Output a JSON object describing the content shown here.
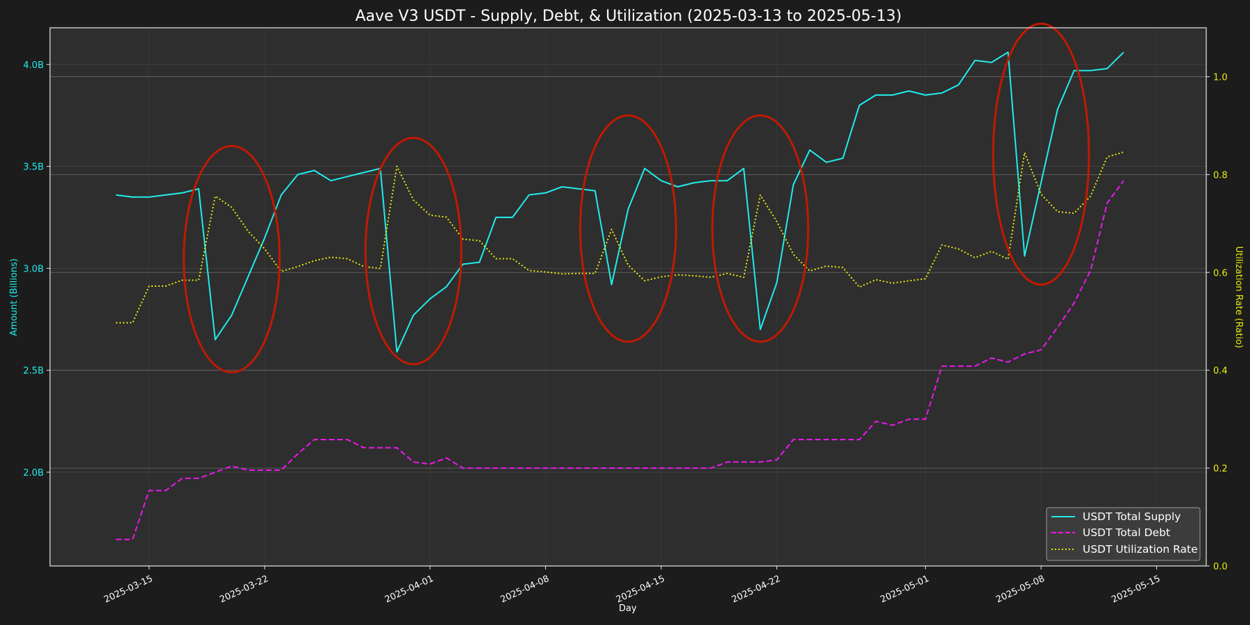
{
  "colors": {
    "figure_bg": "#1c1c1c",
    "axes_bg": "#2e2e2e",
    "supply": "#22ecec",
    "debt": "#ee18ee",
    "utilization": "#ecec10",
    "highlight_ellipse": "#c01a00",
    "grid": "#4a4a4a",
    "spine": "#e8e8e8",
    "text": "#ffffff"
  },
  "chart_data": {
    "type": "line",
    "title": "Aave V3 USDT - Supply, Debt, & Utilization (2025-03-13 to 2025-05-13)",
    "xlabel": "Day",
    "ylabel_left": "Amount (Billions)",
    "ylabel_right": "Utilization Rate (Ratio)",
    "x_ticks": [
      "2025-03-15",
      "2025-03-22",
      "2025-04-01",
      "2025-04-08",
      "2025-04-15",
      "2025-04-22",
      "2025-05-01",
      "2025-05-08",
      "2025-05-15"
    ],
    "y_left_ticks": [
      "2.0B",
      "2.5B",
      "3.0B",
      "3.5B",
      "4.0B"
    ],
    "y_right_ticks": [
      "0.0",
      "0.2",
      "0.4",
      "0.6",
      "0.8",
      "1.0"
    ],
    "x_range": [
      "2025-03-09",
      "2025-05-18"
    ],
    "y_left_range": [
      1.54,
      4.18
    ],
    "y_right_range": [
      0.0,
      1.1
    ],
    "grid": true,
    "legend_position": "bottom-right",
    "dates": [
      "2025-03-13",
      "2025-03-14",
      "2025-03-15",
      "2025-03-16",
      "2025-03-17",
      "2025-03-18",
      "2025-03-19",
      "2025-03-20",
      "2025-03-21",
      "2025-03-22",
      "2025-03-23",
      "2025-03-24",
      "2025-03-25",
      "2025-03-26",
      "2025-03-27",
      "2025-03-28",
      "2025-03-29",
      "2025-03-30",
      "2025-03-31",
      "2025-04-01",
      "2025-04-02",
      "2025-04-03",
      "2025-04-04",
      "2025-04-05",
      "2025-04-06",
      "2025-04-07",
      "2025-04-08",
      "2025-04-09",
      "2025-04-10",
      "2025-04-11",
      "2025-04-12",
      "2025-04-13",
      "2025-04-14",
      "2025-04-15",
      "2025-04-16",
      "2025-04-17",
      "2025-04-18",
      "2025-04-19",
      "2025-04-20",
      "2025-04-21",
      "2025-04-22",
      "2025-04-23",
      "2025-04-24",
      "2025-04-25",
      "2025-04-26",
      "2025-04-27",
      "2025-04-28",
      "2025-04-29",
      "2025-04-30",
      "2025-05-01",
      "2025-05-02",
      "2025-05-03",
      "2025-05-04",
      "2025-05-05",
      "2025-05-06",
      "2025-05-07",
      "2025-05-08",
      "2025-05-09",
      "2025-05-10",
      "2025-05-11",
      "2025-05-12",
      "2025-05-13"
    ],
    "series": [
      {
        "name": "USDT Total Supply",
        "axis": "left",
        "style": "solid",
        "values": [
          3.36,
          3.35,
          3.35,
          3.36,
          3.37,
          3.39,
          2.65,
          2.77,
          2.96,
          3.15,
          3.36,
          3.46,
          3.48,
          3.43,
          3.45,
          3.47,
          3.49,
          2.59,
          2.77,
          2.85,
          2.91,
          3.02,
          3.03,
          3.25,
          3.25,
          3.36,
          3.37,
          3.4,
          3.39,
          3.38,
          2.92,
          3.29,
          3.49,
          3.43,
          3.4,
          3.42,
          3.43,
          3.43,
          3.49,
          2.7,
          2.93,
          3.41,
          3.58,
          3.52,
          3.54,
          3.8,
          3.85,
          3.85,
          3.87,
          3.85,
          3.86,
          3.9,
          4.02,
          4.01,
          4.06,
          3.06,
          3.42,
          3.78,
          3.97,
          3.97,
          3.98,
          4.06
        ]
      },
      {
        "name": "USDT Total Debt",
        "axis": "left",
        "style": "dashed",
        "values": [
          1.67,
          1.67,
          1.91,
          1.91,
          1.97,
          1.97,
          2.0,
          2.03,
          2.01,
          2.01,
          2.01,
          2.09,
          2.16,
          2.16,
          2.16,
          2.12,
          2.12,
          2.12,
          2.05,
          2.04,
          2.07,
          2.02,
          2.02,
          2.02,
          2.02,
          2.02,
          2.02,
          2.02,
          2.02,
          2.02,
          2.02,
          2.02,
          2.02,
          2.02,
          2.02,
          2.02,
          2.02,
          2.05,
          2.05,
          2.05,
          2.06,
          2.16,
          2.16,
          2.16,
          2.16,
          2.16,
          2.25,
          2.23,
          2.26,
          2.26,
          2.52,
          2.52,
          2.52,
          2.56,
          2.54,
          2.58,
          2.6,
          2.71,
          2.83,
          2.99,
          3.32,
          3.43
        ]
      },
      {
        "name": "USDT Utilization Rate",
        "axis": "right",
        "style": "dotted",
        "values": [
          0.497,
          0.497,
          0.572,
          0.572,
          0.584,
          0.584,
          0.756,
          0.733,
          0.684,
          0.648,
          0.602,
          0.612,
          0.624,
          0.631,
          0.628,
          0.612,
          0.608,
          0.817,
          0.748,
          0.717,
          0.713,
          0.668,
          0.665,
          0.628,
          0.628,
          0.604,
          0.601,
          0.597,
          0.598,
          0.598,
          0.688,
          0.615,
          0.583,
          0.591,
          0.595,
          0.593,
          0.59,
          0.598,
          0.59,
          0.758,
          0.704,
          0.637,
          0.603,
          0.613,
          0.61,
          0.57,
          0.585,
          0.578,
          0.583,
          0.587,
          0.656,
          0.648,
          0.63,
          0.643,
          0.627,
          0.845,
          0.76,
          0.724,
          0.721,
          0.756,
          0.836,
          0.846
        ]
      }
    ],
    "highlights": [
      {
        "center_date": "2025-03-20",
        "y_top": 3.6,
        "y_bottom": 2.49
      },
      {
        "center_date": "2025-03-31",
        "y_top": 3.64,
        "y_bottom": 2.53
      },
      {
        "center_date": "2025-04-13",
        "y_top": 3.75,
        "y_bottom": 2.64
      },
      {
        "center_date": "2025-04-21",
        "y_top": 3.75,
        "y_bottom": 2.64
      },
      {
        "center_date": "2025-05-08",
        "y_top": 4.2,
        "y_bottom": 2.92
      }
    ]
  }
}
